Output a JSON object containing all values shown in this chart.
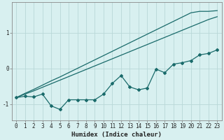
{
  "xlabel": "Humidex (Indice chaleur)",
  "bg_color": "#d8f0f0",
  "grid_color": "#b8d8d8",
  "line_color": "#1a6b6b",
  "x_data": [
    0,
    1,
    2,
    3,
    4,
    5,
    6,
    7,
    8,
    9,
    10,
    11,
    12,
    13,
    14,
    15,
    16,
    17,
    18,
    19,
    20,
    21,
    22,
    23
  ],
  "y_zigzag": [
    -0.82,
    -0.78,
    -0.8,
    -0.72,
    -1.05,
    -1.15,
    -0.88,
    -0.88,
    -0.88,
    -0.88,
    -0.72,
    -0.42,
    -0.2,
    -0.52,
    -0.6,
    -0.55,
    -0.02,
    -0.12,
    0.12,
    0.16,
    0.22,
    0.38,
    0.42,
    0.52
  ],
  "y_line1": [
    -0.82,
    -0.72,
    -0.63,
    -0.53,
    -0.43,
    -0.33,
    -0.23,
    -0.13,
    -0.03,
    0.07,
    0.17,
    0.27,
    0.37,
    0.47,
    0.57,
    0.67,
    0.77,
    0.87,
    0.97,
    1.07,
    1.17,
    1.27,
    1.37,
    1.45
  ],
  "y_line2": [
    -0.82,
    -0.7,
    -0.59,
    -0.47,
    -0.35,
    -0.24,
    -0.12,
    0.0,
    0.12,
    0.24,
    0.36,
    0.48,
    0.6,
    0.72,
    0.84,
    0.96,
    1.08,
    1.2,
    1.32,
    1.44,
    1.56,
    1.6,
    1.6,
    1.62
  ],
  "yticks": [
    -1,
    0,
    1
  ],
  "xticks": [
    0,
    1,
    2,
    3,
    4,
    5,
    6,
    7,
    8,
    9,
    10,
    11,
    12,
    13,
    14,
    15,
    16,
    17,
    18,
    19,
    20,
    21,
    22,
    23
  ],
  "ylim": [
    -1.45,
    1.85
  ],
  "xlim": [
    -0.5,
    23.5
  ],
  "tick_labelsize": 5.5,
  "xlabel_fontsize": 6.5
}
